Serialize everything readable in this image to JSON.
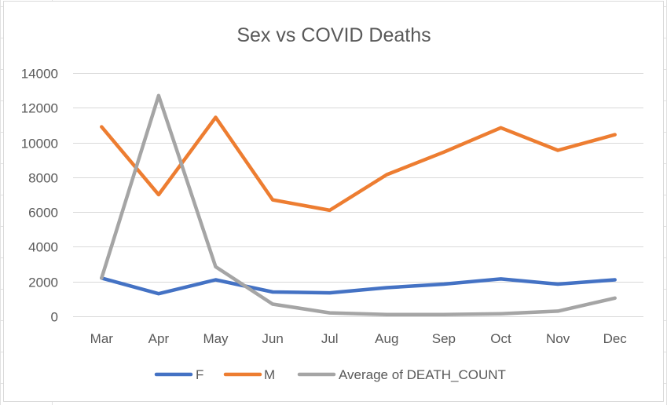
{
  "chart_data": {
    "type": "line",
    "title": "Sex vs COVID Deaths",
    "xlabel": "",
    "ylabel": "",
    "categories": [
      "Mar",
      "Apr",
      "May",
      "Jun",
      "Jul",
      "Aug",
      "Sep",
      "Oct",
      "Nov",
      "Dec"
    ],
    "ylim": [
      0,
      14000
    ],
    "yticks": [
      0,
      2000,
      4000,
      6000,
      8000,
      10000,
      12000,
      14000
    ],
    "grid": true,
    "legend_position": "bottom",
    "series": [
      {
        "name": "F",
        "color": "#4472C4",
        "values": [
          2200,
          1300,
          2100,
          1400,
          1350,
          1650,
          1850,
          2150,
          1850,
          2100
        ]
      },
      {
        "name": "M",
        "color": "#ED7D31",
        "values": [
          10900,
          7000,
          11450,
          6700,
          6100,
          8150,
          9450,
          10850,
          9550,
          10450
        ]
      },
      {
        "name": "Average of DEATH_COUNT",
        "color": "#A5A5A5",
        "values": [
          2200,
          12700,
          2850,
          700,
          200,
          100,
          100,
          150,
          300,
          1050
        ]
      }
    ]
  }
}
